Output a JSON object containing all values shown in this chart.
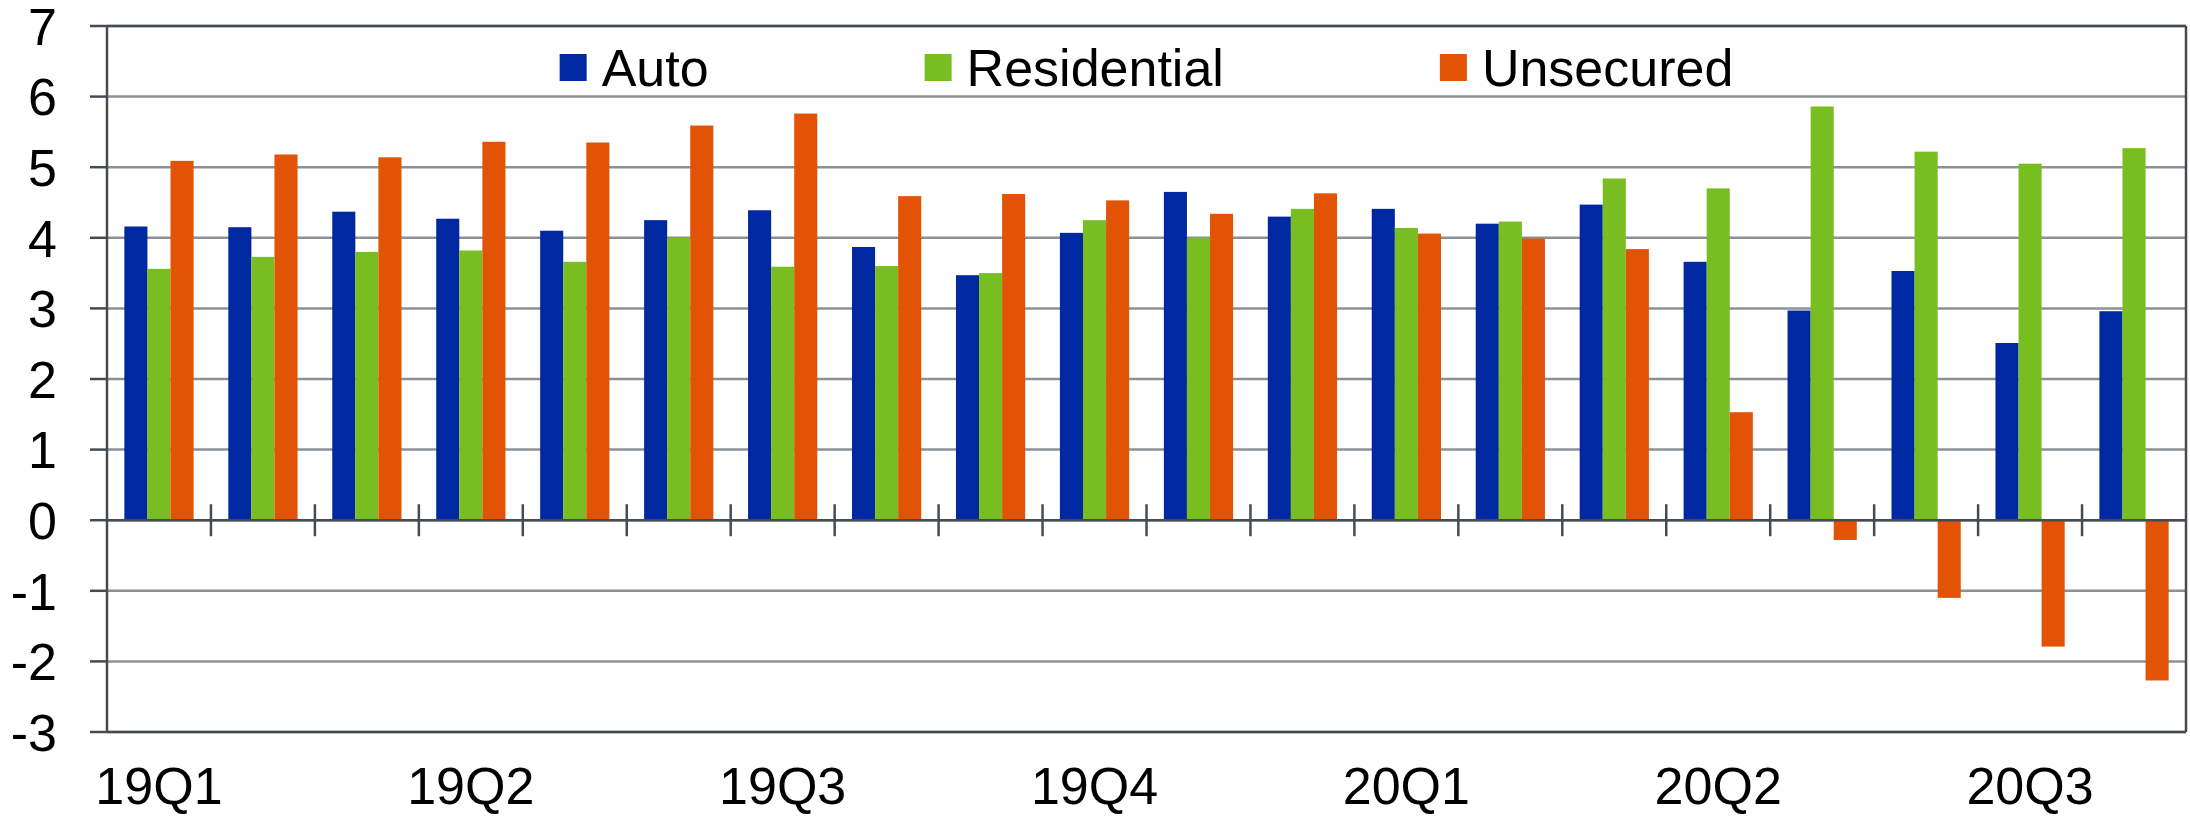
{
  "chart_data": {
    "type": "bar",
    "categories": [
      "19Q1",
      null,
      null,
      "19Q2",
      null,
      null,
      "19Q3",
      null,
      null,
      "19Q4",
      null,
      null,
      "20Q1",
      null,
      null,
      "20Q2",
      null,
      null,
      "20Q3",
      null
    ],
    "series": [
      {
        "name": "Auto",
        "color": "#0028a0",
        "values": [
          4.16,
          4.15,
          4.37,
          4.27,
          4.1,
          4.25,
          4.39,
          3.87,
          3.47,
          4.07,
          4.65,
          4.3,
          4.41,
          4.2,
          4.47,
          3.66,
          2.97,
          3.53,
          2.51,
          2.96
        ]
      },
      {
        "name": "Residential",
        "color": "#78be20",
        "values": [
          3.56,
          3.73,
          3.8,
          3.82,
          3.66,
          4.0,
          3.59,
          3.6,
          3.5,
          4.25,
          4.0,
          4.41,
          4.14,
          4.23,
          4.84,
          4.7,
          5.86,
          5.22,
          5.05,
          5.27
        ]
      },
      {
        "name": "Unsecured",
        "color": "#e25305",
        "values": [
          5.09,
          5.18,
          5.14,
          5.36,
          5.35,
          5.59,
          5.76,
          4.59,
          4.62,
          4.53,
          4.34,
          4.63,
          4.06,
          3.99,
          3.84,
          1.53,
          -0.28,
          -1.1,
          -1.79,
          -2.27
        ]
      }
    ],
    "ylim": [
      -3,
      7
    ],
    "yticks": [
      -3,
      -2,
      -1,
      0,
      1,
      2,
      3,
      4,
      5,
      6,
      7
    ],
    "grid": "y",
    "legend": "top"
  }
}
